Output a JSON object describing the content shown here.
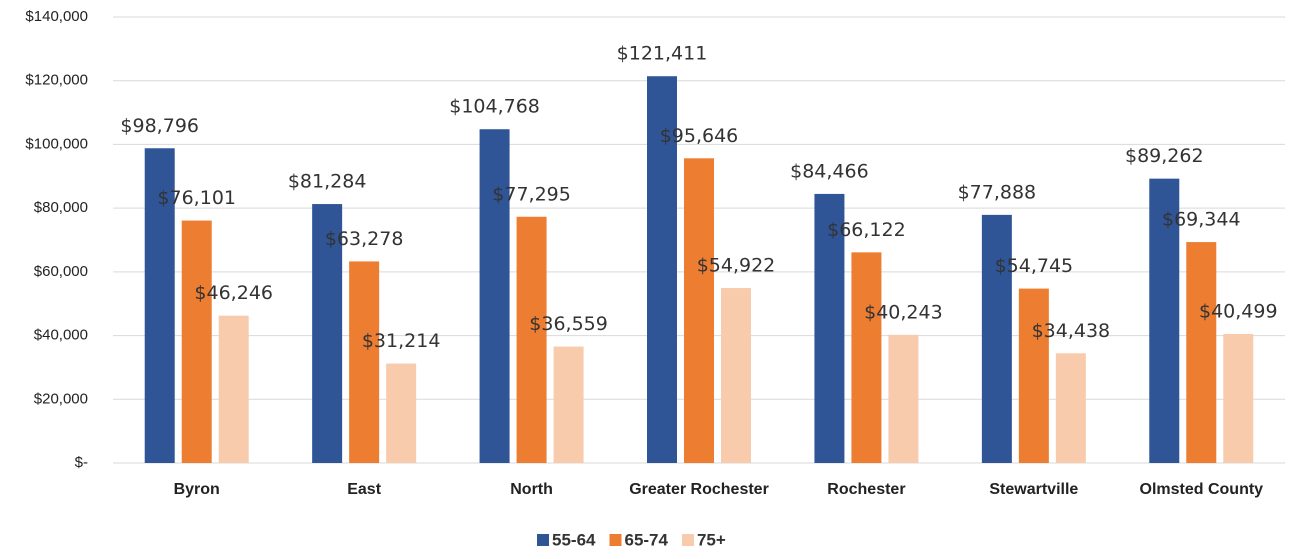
{
  "chart_data": {
    "type": "bar",
    "categories": [
      "Byron",
      "East",
      "North",
      "Greater Rochester",
      "Rochester",
      "Stewartville",
      "Olmsted County"
    ],
    "series": [
      {
        "name": "55-64",
        "color": "#2f5597",
        "values": [
          98796,
          81284,
          104768,
          121411,
          84466,
          77888,
          89262
        ],
        "value_labels": [
          "$98,796",
          "$81,284",
          "$104,768",
          "$121,411",
          "$84,466",
          "$77,888",
          "$89,262"
        ]
      },
      {
        "name": "65-74",
        "color": "#ed7d31",
        "values": [
          76101,
          63278,
          77295,
          95646,
          66122,
          54745,
          69344
        ],
        "value_labels": [
          "$76,101",
          "$63,278",
          "$77,295",
          "$95,646",
          "$66,122",
          "$54,745",
          "$69,344"
        ]
      },
      {
        "name": "75+",
        "color": "#f8cbad",
        "values": [
          46246,
          31214,
          36559,
          54922,
          40243,
          34438,
          40499
        ],
        "value_labels": [
          "$46,246",
          "$31,214",
          "$36,559",
          "$54,922",
          "$40,243",
          "$34,438",
          "$40,499"
        ]
      }
    ],
    "ylim": [
      0,
      140000
    ],
    "yticks": [
      {
        "value": 0,
        "label": "$-"
      },
      {
        "value": 20000,
        "label": "$20,000"
      },
      {
        "value": 40000,
        "label": "$40,000"
      },
      {
        "value": 60000,
        "label": "$60,000"
      },
      {
        "value": 80000,
        "label": "$80,000"
      },
      {
        "value": 100000,
        "label": "$100,000"
      },
      {
        "value": 120000,
        "label": "$120,000"
      },
      {
        "value": 140000,
        "label": "$140,000"
      }
    ],
    "grid": true,
    "legend": "bottom"
  }
}
